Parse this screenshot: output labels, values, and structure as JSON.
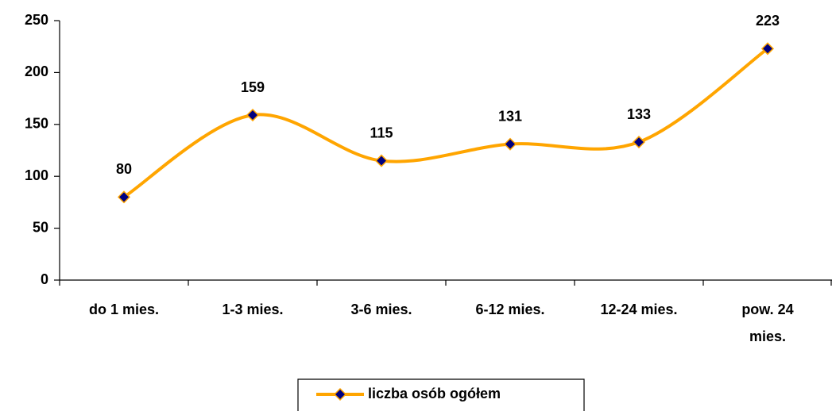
{
  "chart_data": {
    "type": "line",
    "smooth": true,
    "categories": [
      "do 1 mies.",
      "1-3 mies.",
      "3-6 mies.",
      "6-12 mies.",
      "12-24 mies.",
      "pow. 24 mies."
    ],
    "series": [
      {
        "name": "liczba osób ogółem",
        "color": "#ffa500",
        "marker_color": "#000080",
        "values": [
          80,
          159,
          115,
          131,
          133,
          223
        ]
      }
    ],
    "ylim": [
      0,
      250
    ],
    "yticks": [
      0,
      50,
      100,
      150,
      200,
      250
    ],
    "grid": false,
    "data_labels": true,
    "legend": "bottom"
  }
}
